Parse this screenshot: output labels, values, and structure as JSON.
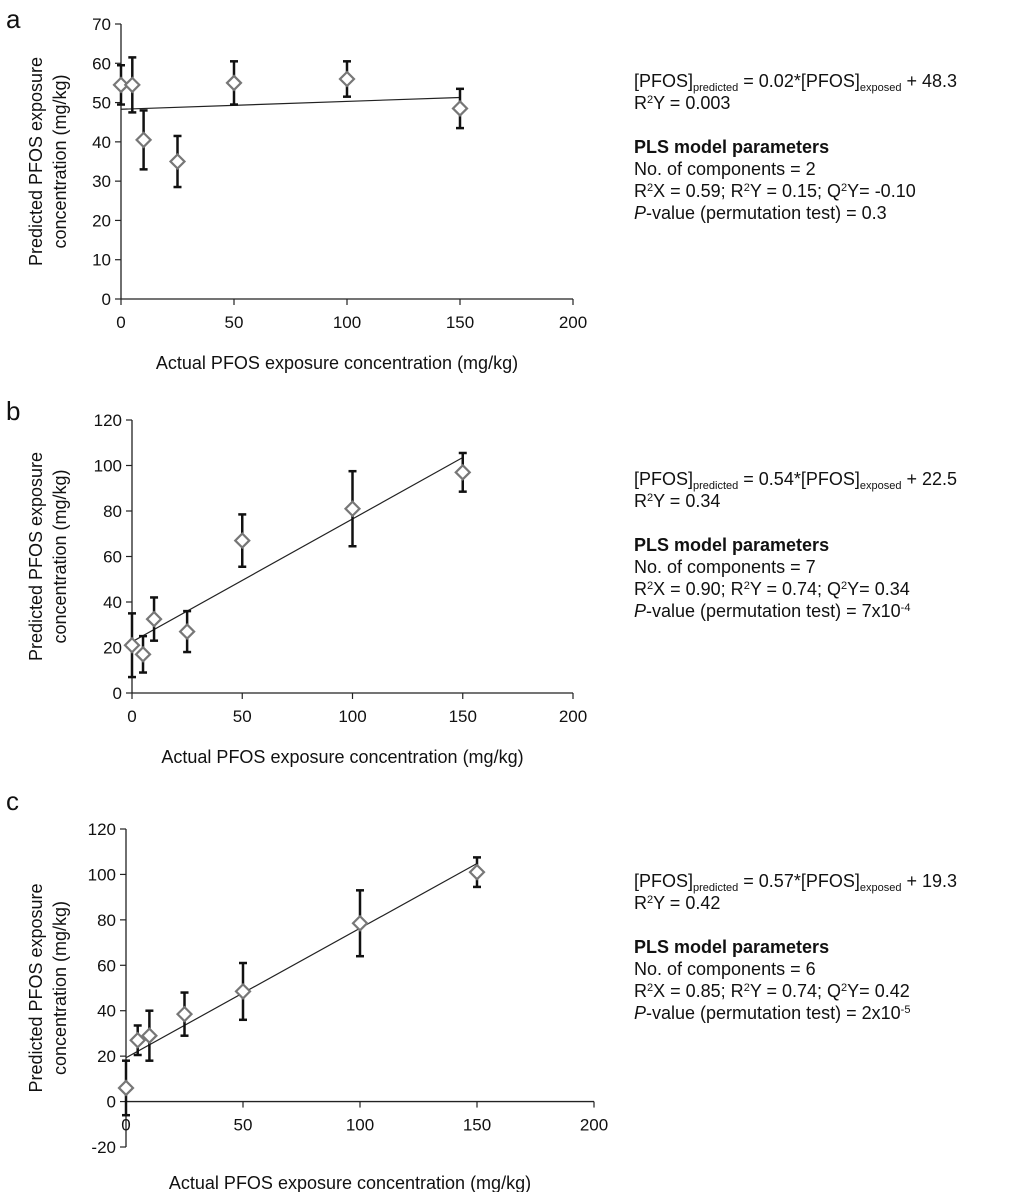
{
  "xlabel": "Actual PFOS exposure concentration (mg/kg)",
  "ylabel_line1": "Predicted PFOS exposure",
  "ylabel_line2": "concentration (mg/kg)",
  "colors": {
    "marker_stroke": "#777777",
    "marker_fill": "#ffffff",
    "axis": "#222222",
    "line": "#222222"
  },
  "panels": [
    {
      "letter": "a",
      "eq_lhs": "[PFOS]",
      "eq_lhs_sub": "predicted",
      "eq_mid": " = 0.02*[PFOS]",
      "eq_mid_sub": "exposed",
      "eq_rhs": " + 48.3",
      "r2_r": "R",
      "r2_sup": "2",
      "r2_rest": "Y = 0.003",
      "params_title": "PLS model parameters",
      "components": "No. of components = 2",
      "fit_a": "R",
      "fit_a_sup": "2",
      "fit_b": "X = 0.59; R",
      "fit_b_sup": "2",
      "fit_c": "Y = 0.15; Q",
      "fit_c_sup": "2",
      "fit_d": "Y= -0.10",
      "p_italic": "P",
      "p_text": "-value (permutation test) =  0.3",
      "p_sup": ""
    },
    {
      "letter": "b",
      "eq_lhs": "[PFOS]",
      "eq_lhs_sub": "predicted",
      "eq_mid": " = 0.54*[PFOS]",
      "eq_mid_sub": "exposed",
      "eq_rhs": " + 22.5",
      "r2_r": "R",
      "r2_sup": "2",
      "r2_rest": "Y = 0.34",
      "params_title": "PLS model parameters",
      "components": "No. of components = 7",
      "fit_a": "R",
      "fit_a_sup": "2",
      "fit_b": "X = 0.90; R",
      "fit_b_sup": "2",
      "fit_c": "Y = 0.74; Q",
      "fit_c_sup": "2",
      "fit_d": "Y= 0.34",
      "p_italic": "P",
      "p_text": "-value (permutation test) =  7x10",
      "p_sup": "-4"
    },
    {
      "letter": "c",
      "eq_lhs": "[PFOS]",
      "eq_lhs_sub": "predicted",
      "eq_mid": " = 0.57*[PFOS]",
      "eq_mid_sub": "exposed",
      "eq_rhs": " + 19.3",
      "r2_r": "R",
      "r2_sup": "2",
      "r2_rest": "Y = 0.42",
      "params_title": "PLS model parameters",
      "components": "No. of components = 6",
      "fit_a": "R",
      "fit_a_sup": "2",
      "fit_b": "X = 0.85; R",
      "fit_b_sup": "2",
      "fit_c": "Y = 0.74; Q",
      "fit_c_sup": "2",
      "fit_d": "Y= 0.42",
      "p_italic": "P",
      "p_text": "-value (permutation test) = 2x10",
      "p_sup": "-5"
    }
  ],
  "chart_data": [
    {
      "type": "scatter",
      "panel": "a",
      "xlabel": "Actual PFOS exposure concentration (mg/kg)",
      "ylabel": "Predicted PFOS exposure concentration (mg/kg)",
      "xlim": [
        0,
        200
      ],
      "ylim": [
        0,
        70
      ],
      "xticks": [
        0,
        50,
        100,
        150,
        200
      ],
      "yticks": [
        0,
        10,
        20,
        30,
        40,
        50,
        60,
        70
      ],
      "points": [
        {
          "x": 0,
          "y": 54.5,
          "err": 5
        },
        {
          "x": 5,
          "y": 54.5,
          "err": 7
        },
        {
          "x": 10,
          "y": 40.5,
          "err": 7.5
        },
        {
          "x": 25,
          "y": 35,
          "err": 6.5
        },
        {
          "x": 50,
          "y": 55,
          "err": 5.5
        },
        {
          "x": 100,
          "y": 56,
          "err": 4.5
        },
        {
          "x": 150,
          "y": 48.5,
          "err": 5
        }
      ],
      "fit": {
        "slope": 0.02,
        "intercept": 48.3,
        "x_range": [
          0,
          150
        ]
      }
    },
    {
      "type": "scatter",
      "panel": "b",
      "xlabel": "Actual PFOS exposure concentration (mg/kg)",
      "ylabel": "Predicted PFOS exposure concentration (mg/kg)",
      "xlim": [
        0,
        200
      ],
      "ylim": [
        0,
        120
      ],
      "xticks": [
        0,
        50,
        100,
        150,
        200
      ],
      "yticks": [
        0,
        20,
        40,
        60,
        80,
        100,
        120
      ],
      "points": [
        {
          "x": 0,
          "y": 21,
          "err": 14
        },
        {
          "x": 5,
          "y": 17,
          "err": 8
        },
        {
          "x": 10,
          "y": 32.5,
          "err": 9.5
        },
        {
          "x": 25,
          "y": 27,
          "err": 9
        },
        {
          "x": 50,
          "y": 67,
          "err": 11.5
        },
        {
          "x": 100,
          "y": 81,
          "err": 16.5
        },
        {
          "x": 150,
          "y": 97,
          "err": 8.5
        }
      ],
      "fit": {
        "slope": 0.54,
        "intercept": 22.5,
        "x_range": [
          0,
          150
        ]
      }
    },
    {
      "type": "scatter",
      "panel": "c",
      "xlabel": "Actual PFOS exposure concentration (mg/kg)",
      "ylabel": "Predicted PFOS exposure concentration (mg/kg)",
      "xlim": [
        0,
        200
      ],
      "ylim": [
        -20,
        120
      ],
      "xticks": [
        0,
        50,
        100,
        150,
        200
      ],
      "yticks": [
        -20,
        0,
        20,
        40,
        60,
        80,
        100,
        120
      ],
      "points": [
        {
          "x": 0,
          "y": 6,
          "err": 12
        },
        {
          "x": 5,
          "y": 27,
          "err": 6.5
        },
        {
          "x": 10,
          "y": 29,
          "err": 11
        },
        {
          "x": 25,
          "y": 38.5,
          "err": 9.5
        },
        {
          "x": 50,
          "y": 48.5,
          "err": 12.5
        },
        {
          "x": 100,
          "y": 78.5,
          "err": 14.5
        },
        {
          "x": 150,
          "y": 101,
          "err": 6.5
        }
      ],
      "fit": {
        "slope": 0.57,
        "intercept": 19.3,
        "x_range": [
          0,
          150
        ]
      }
    }
  ]
}
